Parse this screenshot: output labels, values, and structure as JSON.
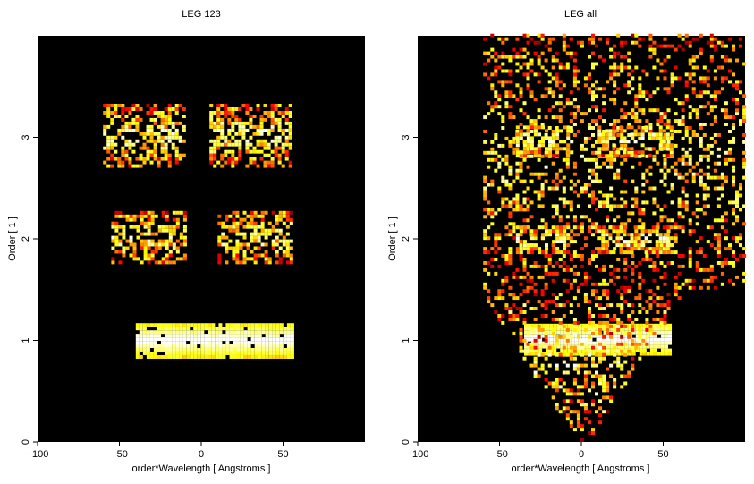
{
  "chart_data": [
    {
      "type": "heatmap",
      "title": "LEG 123",
      "xlabel": "order*Wavelength [ Angstroms ]",
      "ylabel": "Order [ 1 ]",
      "xlim": [
        -100,
        100
      ],
      "ylim": [
        0,
        4
      ],
      "xticks": [
        -100,
        -50,
        0,
        50
      ],
      "xtick_labels": [
        "−100",
        "−50",
        "0",
        "50"
      ],
      "yticks": [
        0,
        1,
        2,
        3
      ],
      "ytick_labels": [
        "0",
        "1",
        "2",
        "3"
      ],
      "colormap": "black-red-orange-yellow-white (heat)",
      "background": "#000000",
      "grid": false,
      "regions": [
        {
          "name": "order-3 left",
          "x": [
            -60,
            -10
          ],
          "y": [
            2.7,
            3.3
          ],
          "level": 0.55
        },
        {
          "name": "order-3 right",
          "x": [
            5,
            55
          ],
          "y": [
            2.7,
            3.3
          ],
          "level": 0.55
        },
        {
          "name": "order-2 left",
          "x": [
            -55,
            -10
          ],
          "y": [
            1.75,
            2.25
          ],
          "level": 0.5
        },
        {
          "name": "order-2 right",
          "x": [
            10,
            55
          ],
          "y": [
            1.75,
            2.25
          ],
          "level": 0.5
        },
        {
          "name": "order-1 band",
          "x": [
            -40,
            55
          ],
          "y": [
            0.82,
            1.15
          ],
          "level": 0.95
        }
      ]
    },
    {
      "type": "heatmap",
      "title": "LEG all",
      "xlabel": "order*Wavelength [ Angstroms ]",
      "ylabel": "Order [ 1 ]",
      "xlim": [
        -100,
        100
      ],
      "ylim": [
        0,
        4
      ],
      "xticks": [
        -100,
        -50,
        0,
        50
      ],
      "xtick_labels": [
        "−100",
        "−50",
        "0",
        "50"
      ],
      "yticks": [
        0,
        1,
        2,
        3
      ],
      "ytick_labels": [
        "0",
        "1",
        "2",
        "3"
      ],
      "colormap": "black-red-orange-yellow-white (heat)",
      "background": "#000000",
      "grid": false,
      "regions": [
        {
          "name": "wide scatter",
          "x": [
            -60,
            100
          ],
          "y": [
            1.5,
            4
          ],
          "level": 0.45
        },
        {
          "name": "order-3 left",
          "x": [
            -40,
            -5
          ],
          "y": [
            2.8,
            3.1
          ],
          "level": 0.6
        },
        {
          "name": "order-3 right",
          "x": [
            10,
            55
          ],
          "y": [
            2.8,
            3.1
          ],
          "level": 0.6
        },
        {
          "name": "order-2 left",
          "x": [
            -40,
            -5
          ],
          "y": [
            1.85,
            2.1
          ],
          "level": 0.6
        },
        {
          "name": "order-2 right",
          "x": [
            10,
            55
          ],
          "y": [
            1.85,
            2.1
          ],
          "level": 0.6
        },
        {
          "name": "order-1 band",
          "x": [
            -35,
            55
          ],
          "y": [
            0.85,
            1.15
          ],
          "level": 0.95
        },
        {
          "name": "zero-order wedge",
          "x": [
            -60,
            60
          ],
          "y": [
            0,
            1.5
          ],
          "level": 0.35
        }
      ]
    }
  ]
}
